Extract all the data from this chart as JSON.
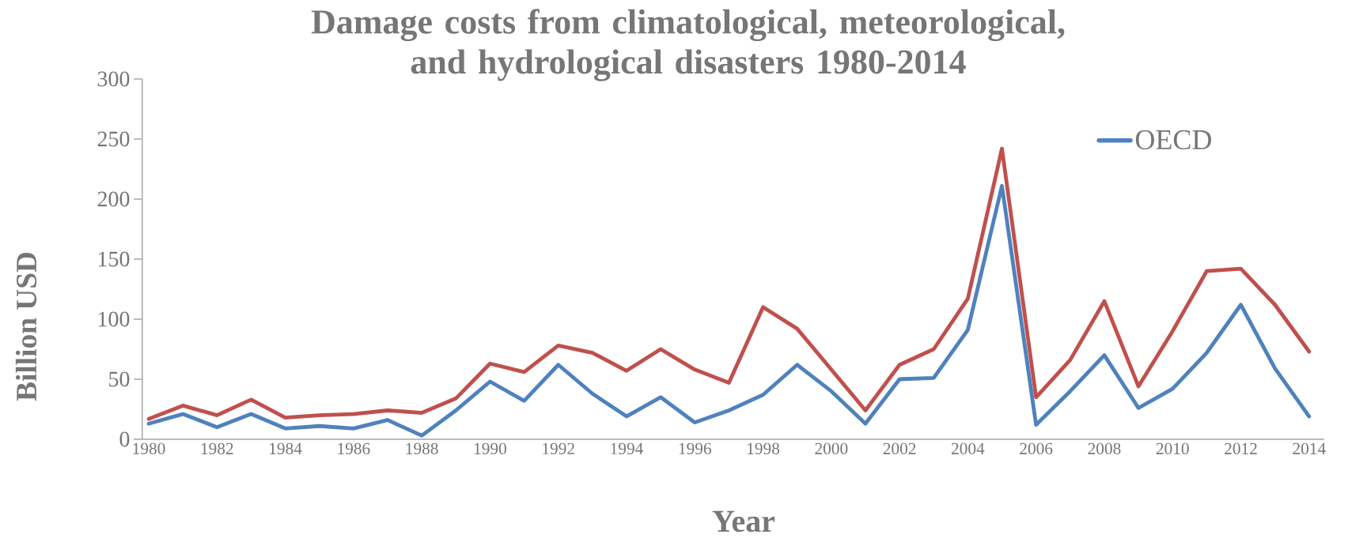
{
  "chart_data": {
    "type": "line",
    "title": "Damage costs from climatological, meteorological, and hydrological disasters 1980-2014",
    "xlabel": "Year",
    "ylabel": "Billion USD",
    "categories": [
      "1980",
      null,
      "1982",
      null,
      "1984",
      null,
      "1986",
      null,
      "1988",
      null,
      "1990",
      null,
      "1992",
      null,
      "1994",
      null,
      "1996",
      null,
      "1998",
      null,
      "2000",
      null,
      "2002",
      null,
      "2004",
      null,
      "2006",
      null,
      "2008",
      null,
      "2010",
      null,
      "2012",
      null,
      "2014"
    ],
    "series": [
      {
        "name": "OECD",
        "color": "#4f81bd",
        "values": [
          13,
          21,
          10,
          21,
          9,
          11,
          9,
          16,
          3,
          24,
          48,
          32,
          62,
          38,
          19,
          35,
          14,
          24,
          37,
          62,
          40,
          13,
          50,
          51,
          91,
          211,
          12,
          40,
          70,
          26,
          42,
          72,
          112,
          59,
          19
        ]
      },
      {
        "color": "#c0504d",
        "values": [
          17,
          28,
          20,
          33,
          18,
          20,
          21,
          24,
          22,
          34,
          63,
          56,
          78,
          72,
          57,
          75,
          58,
          47,
          110,
          92,
          58,
          24,
          62,
          75,
          117,
          242,
          35,
          66,
          115,
          44,
          90,
          140,
          142,
          112,
          73
        ]
      }
    ],
    "ylim": [
      0,
      300
    ],
    "yticks": [
      0,
      50,
      100,
      150,
      200,
      250,
      300
    ],
    "grid": false,
    "legend": "top right",
    "marker": "none",
    "line_style": "solid"
  }
}
